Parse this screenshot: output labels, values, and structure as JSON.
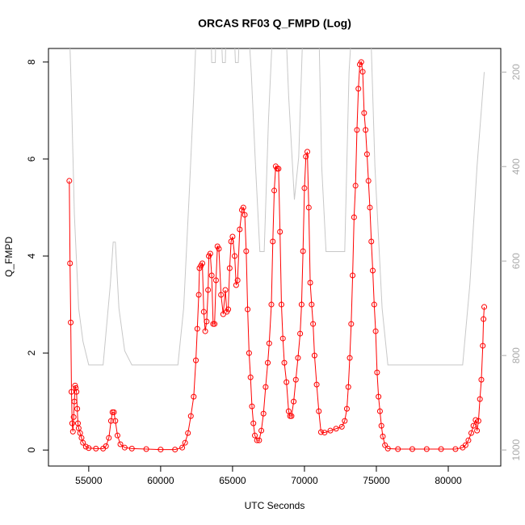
{
  "chart_data": {
    "type": "line",
    "title": "ORCAS RF03 Q_FMPD (Log)",
    "x_label": "UTC Seconds",
    "y_label": "Q_FMPD",
    "xlim": [
      52200,
      83650
    ],
    "xticks": [
      55000,
      60000,
      65000,
      70000,
      75000,
      80000
    ],
    "ylim": [
      -0.33,
      8.28
    ],
    "yticks": [
      0,
      2,
      4,
      6,
      8
    ],
    "y2lim": [
      1034,
      150
    ],
    "y2ticks": [
      200,
      400,
      600,
      800,
      1000
    ],
    "series": [
      {
        "color": "#ff0000",
        "marker": "circle",
        "x": [
          53650,
          53700,
          53750,
          53800,
          53850,
          53900,
          53950,
          54000,
          54050,
          54100,
          54150,
          54200,
          54250,
          54300,
          54400,
          54500,
          54600,
          54800,
          55000,
          55500,
          56000,
          56200,
          56400,
          56550,
          56650,
          56750,
          56850,
          57000,
          57200,
          57500,
          58000,
          59000,
          60000,
          61000,
          61500,
          61700,
          61900,
          62100,
          62300,
          62450,
          62550,
          62650,
          62700,
          62800,
          62900,
          63000,
          63100,
          63200,
          63300,
          63350,
          63450,
          63550,
          63650,
          63750,
          63850,
          63950,
          64050,
          64200,
          64350,
          64500,
          64600,
          64700,
          64800,
          64900,
          65000,
          65150,
          65250,
          65350,
          65500,
          65650,
          65750,
          65850,
          65950,
          66050,
          66150,
          66250,
          66350,
          66450,
          66550,
          66700,
          66850,
          67000,
          67150,
          67300,
          67450,
          67550,
          67700,
          67800,
          67900,
          68000,
          68100,
          68200,
          68300,
          68400,
          68500,
          68600,
          68750,
          68900,
          69000,
          69100,
          69250,
          69400,
          69550,
          69700,
          69800,
          69900,
          70000,
          70100,
          70200,
          70300,
          70400,
          70500,
          70600,
          70700,
          70850,
          71000,
          71150,
          71400,
          71800,
          72200,
          72600,
          72800,
          72950,
          73050,
          73150,
          73250,
          73350,
          73450,
          73550,
          73650,
          73750,
          73850,
          73950,
          74050,
          74150,
          74250,
          74350,
          74450,
          74550,
          74650,
          74750,
          74850,
          74950,
          75050,
          75150,
          75250,
          75350,
          75450,
          75600,
          75800,
          76500,
          77500,
          78500,
          79500,
          80500,
          81000,
          81200,
          81400,
          81600,
          81750,
          81900,
          82000,
          82100,
          82200,
          82300,
          82400,
          82450,
          82500
        ],
        "values": [
          5.55,
          3.85,
          2.63,
          1.2,
          0.55,
          0.38,
          0.68,
          1.0,
          1.33,
          1.28,
          1.2,
          0.85,
          0.55,
          0.45,
          0.35,
          0.25,
          0.15,
          0.07,
          0.04,
          0.03,
          0.03,
          0.08,
          0.25,
          0.6,
          0.78,
          0.78,
          0.6,
          0.3,
          0.12,
          0.05,
          0.03,
          0.02,
          0.01,
          0.01,
          0.05,
          0.15,
          0.35,
          0.7,
          1.1,
          1.85,
          2.5,
          3.2,
          3.75,
          3.8,
          3.85,
          2.85,
          2.45,
          2.65,
          3.3,
          4.0,
          4.05,
          3.6,
          2.6,
          2.6,
          3.5,
          4.2,
          4.15,
          3.2,
          2.8,
          3.3,
          2.85,
          2.9,
          3.75,
          4.3,
          4.4,
          4.0,
          3.4,
          3.5,
          4.55,
          4.95,
          5.0,
          4.85,
          4.1,
          2.9,
          2.0,
          1.5,
          0.9,
          0.55,
          0.3,
          0.2,
          0.2,
          0.4,
          0.75,
          1.3,
          1.8,
          2.2,
          3.0,
          4.3,
          5.35,
          5.85,
          5.8,
          5.8,
          4.5,
          3.0,
          2.3,
          1.8,
          1.4,
          0.8,
          0.7,
          0.7,
          1.0,
          1.45,
          1.9,
          2.4,
          3.0,
          4.1,
          5.4,
          6.05,
          6.15,
          5.0,
          3.45,
          3.0,
          2.6,
          1.95,
          1.35,
          0.8,
          0.37,
          0.36,
          0.4,
          0.44,
          0.48,
          0.6,
          0.85,
          1.3,
          1.9,
          2.6,
          3.6,
          4.8,
          5.45,
          6.6,
          7.45,
          7.95,
          8.0,
          7.8,
          6.95,
          6.6,
          6.1,
          5.55,
          5.0,
          4.3,
          3.7,
          3.0,
          2.45,
          1.6,
          1.1,
          0.8,
          0.5,
          0.28,
          0.1,
          0.03,
          0.02,
          0.02,
          0.02,
          0.02,
          0.02,
          0.05,
          0.1,
          0.2,
          0.35,
          0.5,
          0.62,
          0.4,
          0.6,
          1.05,
          1.45,
          2.15,
          2.7,
          2.95
        ]
      },
      {
        "color": "#c8c8c8",
        "axis": "y2",
        "x": [
          53650,
          53800,
          54000,
          54300,
          54600,
          55000,
          56000,
          56500,
          56700,
          56850,
          57100,
          57500,
          58000,
          61200,
          61600,
          62000,
          62300,
          62500,
          63500,
          63550,
          63800,
          63850,
          64200,
          64300,
          64500,
          64550,
          65100,
          65200,
          65400,
          65500,
          66100,
          66300,
          66600,
          66900,
          67200,
          67500,
          67800,
          68700,
          68900,
          69300,
          69600,
          69900,
          71000,
          71200,
          71500,
          72800,
          73100,
          73300,
          74600,
          74900,
          75400,
          75800,
          81000,
          81500,
          82000,
          82500
        ],
        "values": [
          100,
          250,
          500,
          700,
          770,
          820,
          820,
          650,
          560,
          560,
          700,
          790,
          820,
          820,
          700,
          450,
          250,
          100,
          100,
          180,
          180,
          100,
          100,
          180,
          180,
          100,
          100,
          180,
          180,
          100,
          100,
          200,
          400,
          580,
          580,
          300,
          100,
          100,
          250,
          470,
          380,
          100,
          100,
          400,
          580,
          580,
          200,
          100,
          100,
          400,
          700,
          820,
          820,
          650,
          400,
          200
        ]
      }
    ]
  }
}
